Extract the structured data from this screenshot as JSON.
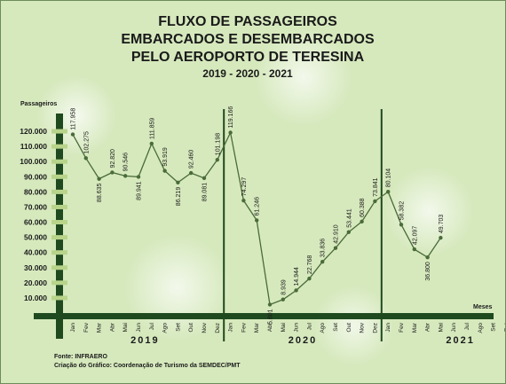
{
  "chart_data": {
    "type": "line",
    "title_lines": [
      "FLUXO DE PASSAGEIROS",
      "EMBARCADOS E DESEMBARCADOS",
      "PELO AEROPORTO DE TERESINA"
    ],
    "subtitle": "2019 - 2020 - 2021",
    "ylabel": "Passageiros",
    "xlabel": "Meses",
    "ylim": [
      0,
      130000
    ],
    "yticks": [
      "10.000",
      "20.000",
      "30.000",
      "40.000",
      "50.000",
      "60.000",
      "70.000",
      "80.000",
      "90.000",
      "100.000",
      "110.000",
      "120.000"
    ],
    "ytick_values": [
      10000,
      20000,
      30000,
      40000,
      50000,
      60000,
      70000,
      80000,
      90000,
      100000,
      110000,
      120000
    ],
    "months": [
      "Jan",
      "Fev",
      "Mar",
      "Abr",
      "Mai",
      "Jun",
      "Jul",
      "Ago",
      "Set",
      "Out",
      "Nov",
      "Dez"
    ],
    "years": [
      "2019",
      "2020",
      "2021"
    ],
    "series": [
      {
        "values": [
          117958,
          102275,
          88635,
          92820,
          90546,
          89941,
          111859,
          93919,
          86219,
          92460,
          89081,
          101198,
          119166,
          74297,
          61246,
          5601,
          8939,
          14944,
          22768,
          33836,
          42910,
          53441,
          60388,
          73841,
          80104,
          58382,
          42097,
          36800,
          49703
        ],
        "labels": [
          "117.958",
          "102.275",
          "88.635",
          "92.820",
          "90.546",
          "89.941",
          "111.859",
          "93.919",
          "86.219",
          "92.460",
          "89.081",
          "101.198",
          "119.166",
          "74.297",
          "61.246",
          "5.601",
          "8.939",
          "14.944",
          "22.768",
          "33.836",
          "42.910",
          "53.441",
          "60.388",
          "73.841",
          "80.104",
          "58.382",
          "42.097",
          "36.800",
          "49.703"
        ]
      }
    ],
    "grid": false,
    "colors": {
      "line": "#4a6b3a",
      "marker": "#4a6b3a",
      "axis": "#1f4a1f",
      "ticks": "#b8d48a"
    }
  },
  "footer": {
    "source": "Fonte: INFRAERO",
    "credit": "Criação do Gráfico: Coordenação de Turismo da SEMDEC/PMT"
  }
}
